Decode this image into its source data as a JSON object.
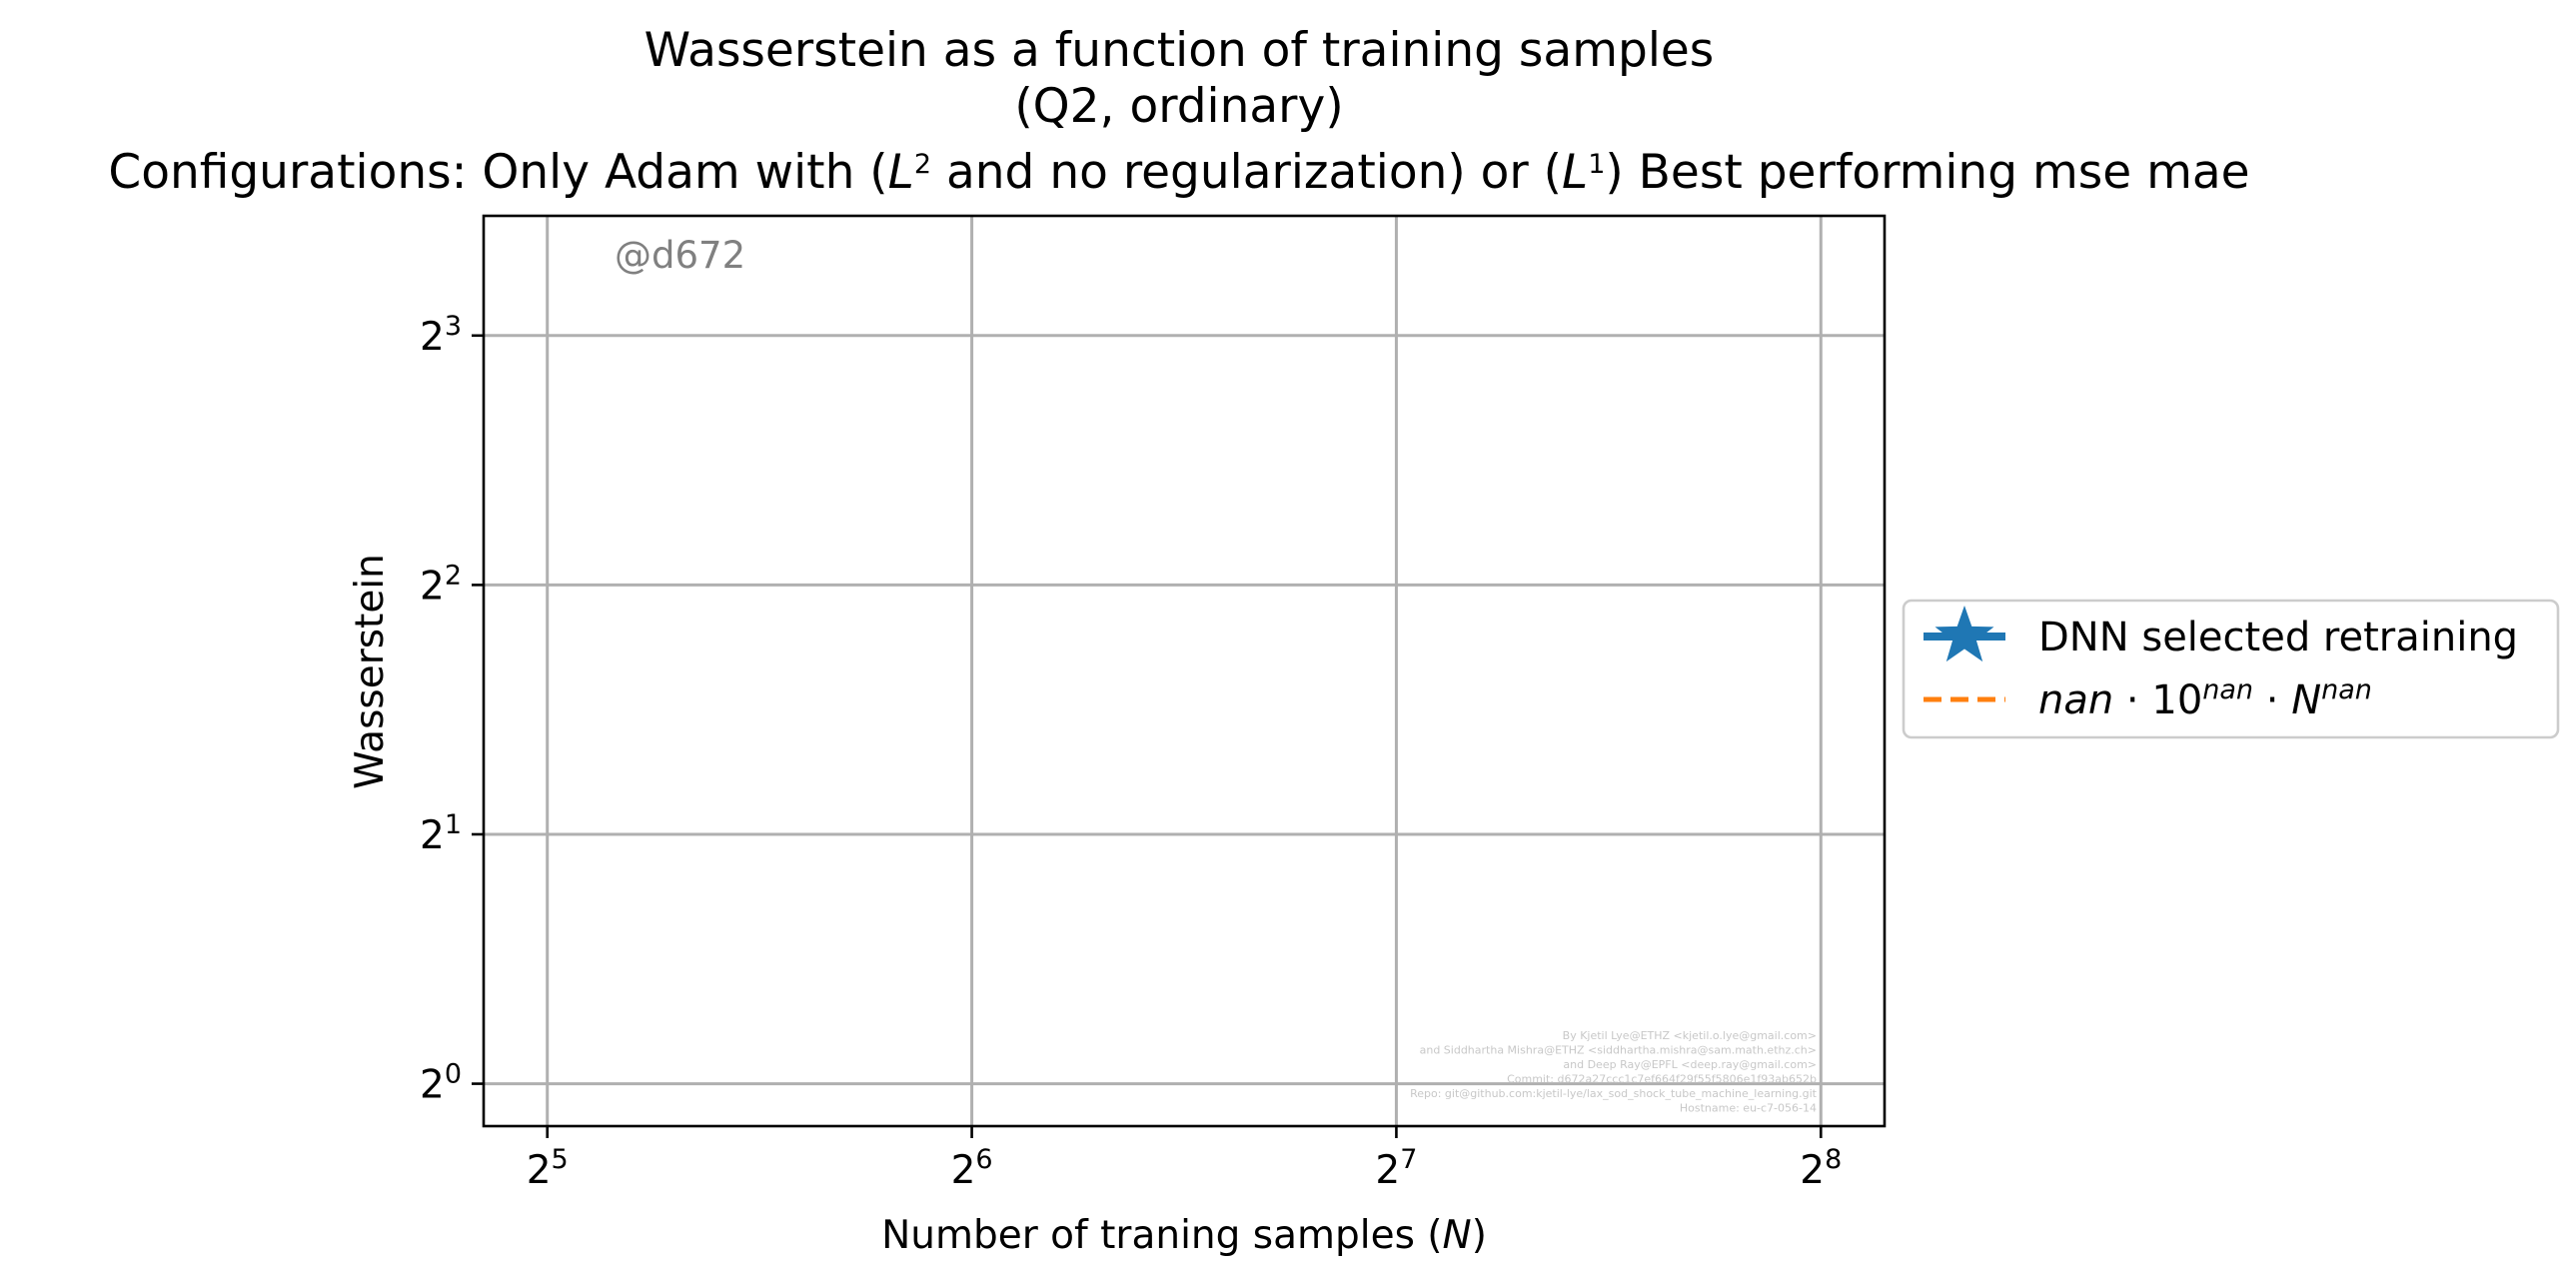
{
  "chart_data": {
    "type": "line",
    "title": "Wasserstein as a function of training samples",
    "subtitle": "(Q2, ordinary)",
    "configurations": "Configurations: Only Adam with (L² and no regularization) or (L¹) Best performing mse mae",
    "xlabel": "Number of traning samples (N)",
    "ylabel": "Wasserstein",
    "xscale": "log2",
    "yscale": "log2",
    "xlim_exp": [
      4.85,
      8.15
    ],
    "ylim_exp": [
      -0.17,
      3.48
    ],
    "xticks": [
      {
        "base": "2",
        "exp": "5",
        "value_exp": 5
      },
      {
        "base": "2",
        "exp": "6",
        "value_exp": 6
      },
      {
        "base": "2",
        "exp": "7",
        "value_exp": 7
      },
      {
        "base": "2",
        "exp": "8",
        "value_exp": 8
      }
    ],
    "yticks": [
      {
        "base": "2",
        "exp": "0",
        "value_exp": 0
      },
      {
        "base": "2",
        "exp": "1",
        "value_exp": 1
      },
      {
        "base": "2",
        "exp": "2",
        "value_exp": 2
      },
      {
        "base": "2",
        "exp": "3",
        "value_exp": 3
      }
    ],
    "grid": true,
    "legend_position": "outside-right",
    "series": [
      {
        "name": "DNN selected retraining",
        "color": "#1f77b4",
        "style": "solid-star",
        "x": [],
        "y": []
      },
      {
        "name": "nan · 10^nan · N^nan",
        "color": "#ff7f0e",
        "style": "dashed",
        "x": [],
        "y": []
      }
    ],
    "watermark": "@d672",
    "credits": [
      "By Kjetil Lye@ETHZ <kjetil.o.lye@gmail.com>",
      "and Siddhartha Mishra@ETHZ <siddhartha.mishra@sam.math.ethz.ch>",
      "and Deep Ray@EPFL <deep.ray@gmail.com>",
      "Commit: d672a27ccc1c7ef664f29f55f5806e1f93ab652b",
      "Repo: git@github.com:kjetil-lye/lax_sod_shock_tube_machine_learning.git",
      "Hostname: eu-c7-056-14"
    ]
  }
}
